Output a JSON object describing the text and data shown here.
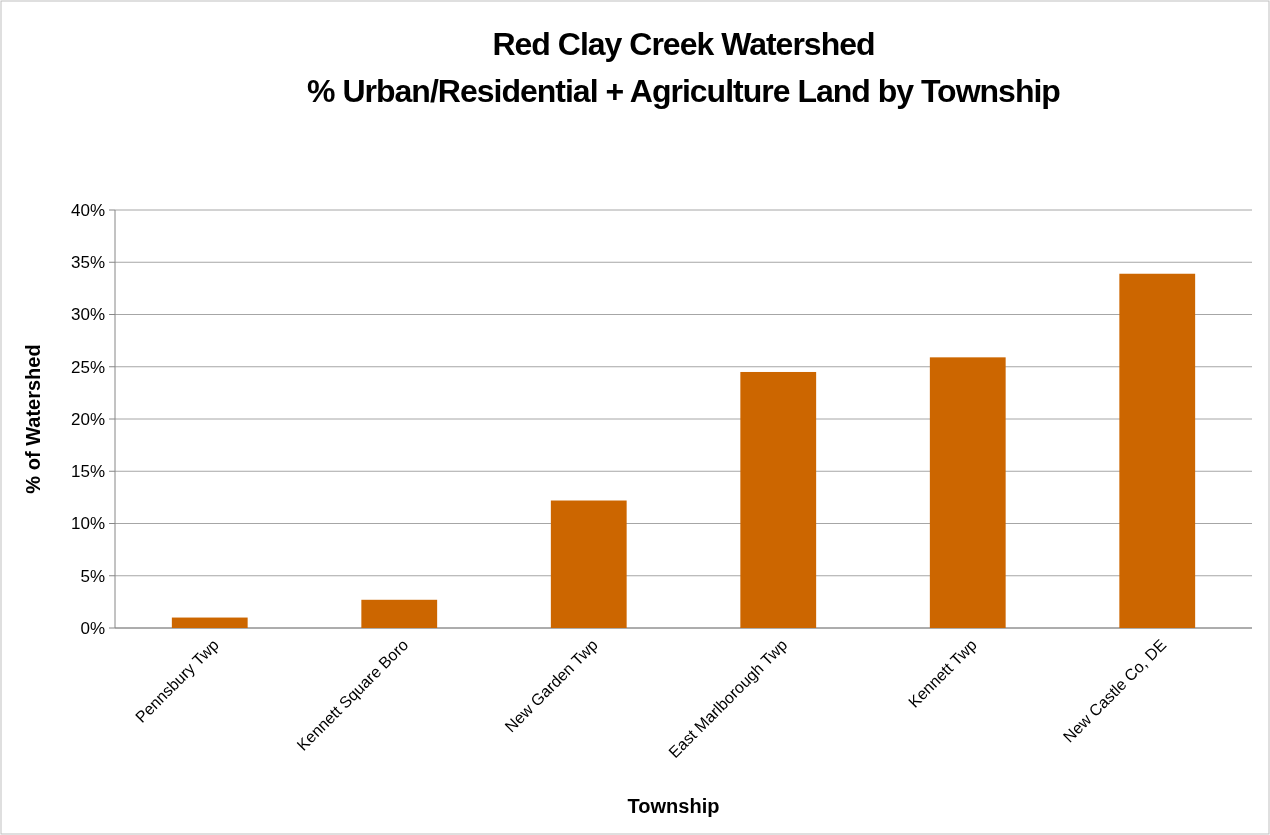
{
  "chart_data": {
    "type": "bar",
    "title": "Red Clay Creek Watershed\n% Urban/Residential + Agriculture Land by Township",
    "xlabel": "Township",
    "ylabel": "% of Watershed",
    "categories": [
      "Pennsbury Twp",
      "Kennett Square Boro",
      "New Garden Twp",
      "East Marlborough Twp",
      "Kennett Twp",
      "New Castle Co, DE"
    ],
    "values": [
      1.0,
      2.7,
      12.2,
      24.5,
      25.9,
      33.9
    ],
    "color": "#cc6600",
    "ylim": [
      0,
      40
    ],
    "yticks": [
      {
        "value": 0,
        "label": "0%"
      },
      {
        "value": 5,
        "label": "5%"
      },
      {
        "value": 10,
        "label": "10%"
      },
      {
        "value": 15,
        "label": "15%"
      },
      {
        "value": 20,
        "label": "20%"
      },
      {
        "value": 25,
        "label": "25%"
      },
      {
        "value": 30,
        "label": "30%"
      },
      {
        "value": 35,
        "label": "35%"
      },
      {
        "value": 40,
        "label": "40%"
      }
    ],
    "grid": "y"
  }
}
